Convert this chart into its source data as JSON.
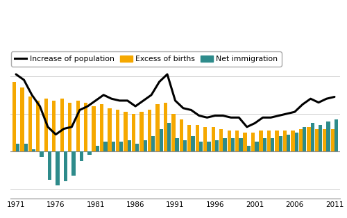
{
  "years": [
    1971,
    1972,
    1973,
    1974,
    1975,
    1976,
    1977,
    1978,
    1979,
    1980,
    1981,
    1982,
    1983,
    1984,
    1985,
    1986,
    1987,
    1988,
    1989,
    1990,
    1991,
    1992,
    1993,
    1994,
    1995,
    1996,
    1997,
    1998,
    1999,
    2000,
    2001,
    2002,
    2003,
    2004,
    2005,
    2006,
    2007,
    2008,
    2009,
    2010,
    2011
  ],
  "excess_births": [
    37000,
    34000,
    29000,
    27000,
    28000,
    27000,
    28000,
    26000,
    27000,
    26000,
    24000,
    25000,
    23000,
    22000,
    21000,
    20000,
    21000,
    22000,
    25000,
    26000,
    20000,
    17000,
    14000,
    14000,
    13000,
    13000,
    12000,
    11000,
    11000,
    10000,
    10000,
    11000,
    11000,
    11000,
    11000,
    11000,
    12000,
    13000,
    12000,
    12000,
    12000
  ],
  "net_immigration": [
    4000,
    4000,
    1000,
    -3000,
    -15000,
    -18000,
    -16000,
    -13000,
    -5000,
    -2000,
    3000,
    5000,
    5000,
    5000,
    6000,
    4000,
    6000,
    8000,
    12000,
    15000,
    7000,
    6000,
    8000,
    5000,
    5000,
    6000,
    7000,
    7000,
    7000,
    3000,
    5000,
    7000,
    7000,
    8000,
    9000,
    10000,
    13000,
    15000,
    14000,
    16000,
    17000
  ],
  "pop_increase": [
    41000,
    38000,
    30000,
    24000,
    13000,
    9000,
    12000,
    13000,
    22000,
    24000,
    27000,
    30000,
    28000,
    27000,
    27000,
    24000,
    27000,
    30000,
    37000,
    41000,
    27000,
    23000,
    22000,
    19000,
    18000,
    19000,
    19000,
    18000,
    18000,
    13000,
    15000,
    18000,
    18000,
    19000,
    20000,
    21000,
    25000,
    28000,
    26000,
    28000,
    29000
  ],
  "bar_color_births": "#f5a800",
  "bar_color_immigration": "#2e8b8b",
  "line_color": "#000000",
  "background_color": "#ffffff",
  "grid_color": "#cccccc",
  "ylim": [
    -25000,
    55000
  ],
  "yticks": [
    -20000,
    0,
    20000,
    40000
  ],
  "legend_labels": [
    "Increase of population",
    "Excess of births",
    "Net immigration"
  ]
}
